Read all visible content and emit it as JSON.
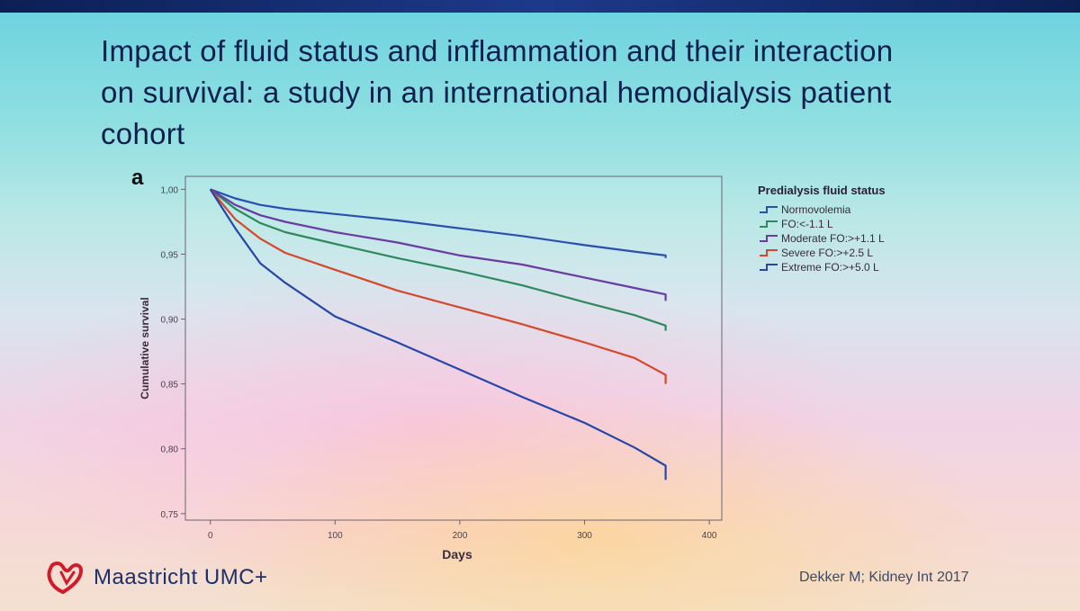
{
  "slide": {
    "title": "Impact of fluid status and inflammation and their interaction on survival: a study in an international hemodialysis patient cohort",
    "panel_letter": "a",
    "logo_text": "Maastricht UMC+",
    "citation": "Dekker M;  Kidney Int 2017"
  },
  "chart_data": {
    "type": "line",
    "title": "",
    "xlabel": "Days",
    "ylabel": "Cumulative survival",
    "xlim": [
      -20,
      410
    ],
    "ylim": [
      0.745,
      1.01
    ],
    "xticks": [
      0,
      100,
      200,
      300,
      400
    ],
    "yticks": [
      0.75,
      0.8,
      0.85,
      0.9,
      0.95,
      1.0
    ],
    "xtick_labels": [
      "0",
      "100",
      "200",
      "300",
      "400"
    ],
    "ytick_labels": [
      "0,75",
      "0,80",
      "0,85",
      "0,90",
      "0,95",
      "1,00"
    ],
    "grid": false,
    "legend_title": "Predialysis fluid status",
    "legend_position": "right",
    "series": [
      {
        "name": "Normovolemia",
        "color": "#2a4fb3",
        "points": [
          [
            0,
            1.0
          ],
          [
            20,
            0.993
          ],
          [
            40,
            0.988
          ],
          [
            60,
            0.985
          ],
          [
            100,
            0.981
          ],
          [
            150,
            0.976
          ],
          [
            200,
            0.97
          ],
          [
            250,
            0.964
          ],
          [
            300,
            0.957
          ],
          [
            340,
            0.952
          ],
          [
            365,
            0.949
          ]
        ],
        "end_drop": 0.947
      },
      {
        "name": "FO:<-1.1 L",
        "color": "#2e8a5c",
        "points": [
          [
            0,
            1.0
          ],
          [
            20,
            0.985
          ],
          [
            40,
            0.974
          ],
          [
            60,
            0.967
          ],
          [
            100,
            0.958
          ],
          [
            150,
            0.947
          ],
          [
            200,
            0.937
          ],
          [
            250,
            0.926
          ],
          [
            300,
            0.913
          ],
          [
            340,
            0.903
          ],
          [
            365,
            0.895
          ]
        ],
        "end_drop": 0.891
      },
      {
        "name": "Moderate FO:>+1.1 L",
        "color": "#6a3ba2",
        "points": [
          [
            0,
            1.0
          ],
          [
            20,
            0.988
          ],
          [
            40,
            0.98
          ],
          [
            60,
            0.975
          ],
          [
            100,
            0.967
          ],
          [
            150,
            0.959
          ],
          [
            200,
            0.949
          ],
          [
            250,
            0.942
          ],
          [
            300,
            0.932
          ],
          [
            340,
            0.924
          ],
          [
            365,
            0.919
          ]
        ],
        "end_drop": 0.914
      },
      {
        "name": "Severe FO:>+2.5 L",
        "color": "#d5482a",
        "points": [
          [
            0,
            1.0
          ],
          [
            20,
            0.977
          ],
          [
            40,
            0.962
          ],
          [
            60,
            0.951
          ],
          [
            100,
            0.938
          ],
          [
            150,
            0.922
          ],
          [
            200,
            0.909
          ],
          [
            250,
            0.896
          ],
          [
            300,
            0.882
          ],
          [
            340,
            0.87
          ],
          [
            365,
            0.857
          ]
        ],
        "end_drop": 0.85
      },
      {
        "name": "Extreme FO:>+5.0 L",
        "color": "#2747a8",
        "points": [
          [
            0,
            1.0
          ],
          [
            20,
            0.97
          ],
          [
            40,
            0.943
          ],
          [
            60,
            0.928
          ],
          [
            100,
            0.902
          ],
          [
            150,
            0.882
          ],
          [
            200,
            0.861
          ],
          [
            250,
            0.84
          ],
          [
            300,
            0.82
          ],
          [
            340,
            0.801
          ],
          [
            365,
            0.787
          ]
        ],
        "end_drop": 0.776
      }
    ]
  }
}
